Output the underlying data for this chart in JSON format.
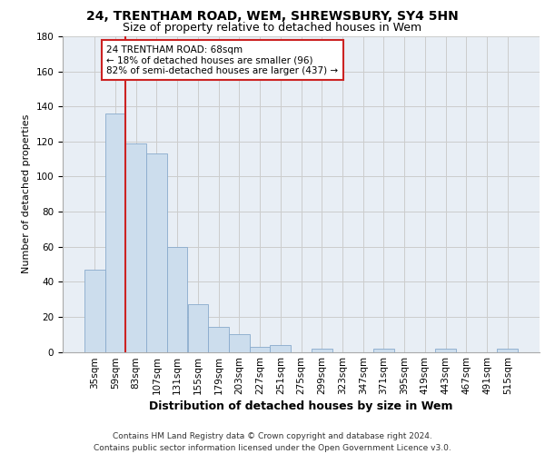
{
  "title1": "24, TRENTHAM ROAD, WEM, SHREWSBURY, SY4 5HN",
  "title2": "Size of property relative to detached houses in Wem",
  "xlabel": "Distribution of detached houses by size in Wem",
  "ylabel": "Number of detached properties",
  "footnote": "Contains HM Land Registry data © Crown copyright and database right 2024.\nContains public sector information licensed under the Open Government Licence v3.0.",
  "bar_labels": [
    "35sqm",
    "59sqm",
    "83sqm",
    "107sqm",
    "131sqm",
    "155sqm",
    "179sqm",
    "203sqm",
    "227sqm",
    "251sqm",
    "275sqm",
    "299sqm",
    "323sqm",
    "347sqm",
    "371sqm",
    "395sqm",
    "419sqm",
    "443sqm",
    "467sqm",
    "491sqm",
    "515sqm"
  ],
  "bar_values": [
    47,
    136,
    119,
    113,
    60,
    27,
    14,
    10,
    3,
    4,
    0,
    2,
    0,
    0,
    2,
    0,
    0,
    2,
    0,
    0,
    2
  ],
  "bar_color": "#ccdded",
  "bar_edge_color": "#88aacc",
  "annotation_text": "24 TRENTHAM ROAD: 68sqm\n← 18% of detached houses are smaller (96)\n82% of semi-detached houses are larger (437) →",
  "annotation_box_color": "white",
  "annotation_box_edge_color": "#cc2222",
  "line_color": "#cc2222",
  "property_line_x": 1.5,
  "ylim": [
    0,
    180
  ],
  "yticks": [
    0,
    20,
    40,
    60,
    80,
    100,
    120,
    140,
    160,
    180
  ],
  "grid_color": "#cccccc",
  "bg_color": "#e8eef5",
  "title1_fontsize": 10,
  "title2_fontsize": 9,
  "xlabel_fontsize": 9,
  "ylabel_fontsize": 8,
  "tick_fontsize": 7.5,
  "footnote_fontsize": 6.5
}
